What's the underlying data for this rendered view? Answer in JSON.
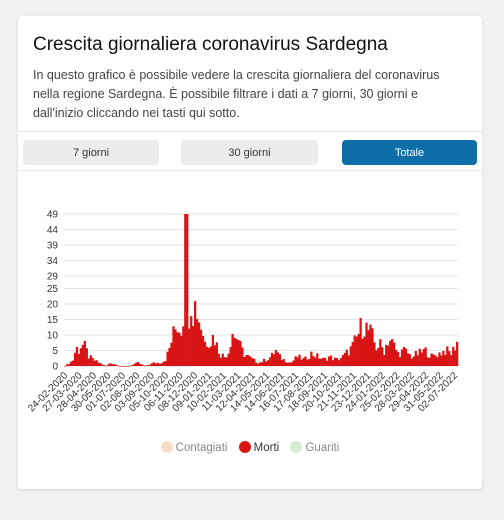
{
  "card": {
    "title": "Crescita giornaliera coronavirus Sardegna",
    "description": "In questo grafico è possibile vedere la crescita giornaliera del coronavirus nella regione Sardegna. È possibile filtrare i dati a 7 giorni, 30 giorni e dall'inizio cliccando nei tasti qui sotto."
  },
  "tabs": [
    {
      "label": "7 giorni",
      "active": false
    },
    {
      "label": "30 giorni",
      "active": false
    },
    {
      "label": "Totale",
      "active": true
    }
  ],
  "legend": [
    {
      "label": "Contagiati",
      "color": "#f7dcc4",
      "active": false
    },
    {
      "label": "Morti",
      "color": "#d81414",
      "active": true
    },
    {
      "label": "Guariti",
      "color": "#d6ebd1",
      "active": false
    }
  ],
  "chart_data": {
    "type": "bar",
    "series": [
      {
        "name": "Morti",
        "color": "#d81414"
      }
    ],
    "y_ticks": [
      0,
      5,
      10,
      15,
      20,
      25,
      29,
      34,
      39,
      44,
      49
    ],
    "ylim": [
      0,
      49
    ],
    "x_tick_labels": [
      "24-02-2020",
      "27-03-2020",
      "28-04-2020",
      "30-05-2020",
      "01-07-2020",
      "02-08-2020",
      "03-09-2020",
      "05-10-2020",
      "06-11-2020",
      "08-12-2020",
      "09-01-2021",
      "10-02-2021",
      "11-03-2021",
      "12-04-2021",
      "14-05-2021",
      "14-06-2021",
      "16-07-2021",
      "17-08-2021",
      "18-09-2021",
      "20-10-2021",
      "21-11-2021",
      "23-12-2021",
      "24-01-2022",
      "25-02-2022",
      "28-03-2022",
      "29-04-2022",
      "31-05-2022",
      "02-07-2022"
    ],
    "x_span_days": 860,
    "profile": [
      [
        0,
        0
      ],
      [
        10,
        1
      ],
      [
        18,
        2
      ],
      [
        24,
        6
      ],
      [
        30,
        5
      ],
      [
        36,
        7
      ],
      [
        44,
        6
      ],
      [
        52,
        3
      ],
      [
        62,
        2
      ],
      [
        75,
        1
      ],
      [
        90,
        0
      ],
      [
        100,
        1
      ],
      [
        120,
        0
      ],
      [
        140,
        0
      ],
      [
        160,
        1
      ],
      [
        175,
        0
      ],
      [
        195,
        1
      ],
      [
        210,
        1
      ],
      [
        220,
        2
      ],
      [
        228,
        5
      ],
      [
        235,
        9
      ],
      [
        242,
        12
      ],
      [
        248,
        14
      ],
      [
        253,
        11
      ],
      [
        258,
        15
      ],
      [
        262,
        20
      ],
      [
        265,
        49
      ],
      [
        268,
        26
      ],
      [
        272,
        18
      ],
      [
        277,
        23
      ],
      [
        282,
        17
      ],
      [
        287,
        21
      ],
      [
        292,
        16
      ],
      [
        297,
        14
      ],
      [
        302,
        11
      ],
      [
        308,
        7
      ],
      [
        314,
        9
      ],
      [
        320,
        8
      ],
      [
        326,
        10
      ],
      [
        332,
        7
      ],
      [
        340,
        4
      ],
      [
        350,
        3
      ],
      [
        360,
        5
      ],
      [
        366,
        12
      ],
      [
        372,
        9
      ],
      [
        378,
        10
      ],
      [
        385,
        6
      ],
      [
        392,
        4
      ],
      [
        402,
        3
      ],
      [
        412,
        2
      ],
      [
        425,
        1
      ],
      [
        440,
        2
      ],
      [
        452,
        3
      ],
      [
        462,
        5
      ],
      [
        470,
        3
      ],
      [
        480,
        2
      ],
      [
        495,
        1
      ],
      [
        510,
        3
      ],
      [
        525,
        2
      ],
      [
        540,
        4
      ],
      [
        555,
        3
      ],
      [
        568,
        2
      ],
      [
        580,
        3
      ],
      [
        595,
        2
      ],
      [
        610,
        3
      ],
      [
        630,
        6
      ],
      [
        640,
        9
      ],
      [
        648,
        12
      ],
      [
        655,
        14
      ],
      [
        662,
        12
      ],
      [
        668,
        11
      ],
      [
        675,
        9
      ],
      [
        682,
        6
      ],
      [
        690,
        7
      ],
      [
        700,
        5
      ],
      [
        710,
        9
      ],
      [
        720,
        7
      ],
      [
        730,
        4
      ],
      [
        745,
        5
      ],
      [
        760,
        3
      ],
      [
        775,
        4
      ],
      [
        790,
        5
      ],
      [
        805,
        3
      ],
      [
        820,
        4
      ],
      [
        835,
        5
      ],
      [
        848,
        4
      ],
      [
        860,
        8
      ]
    ]
  }
}
